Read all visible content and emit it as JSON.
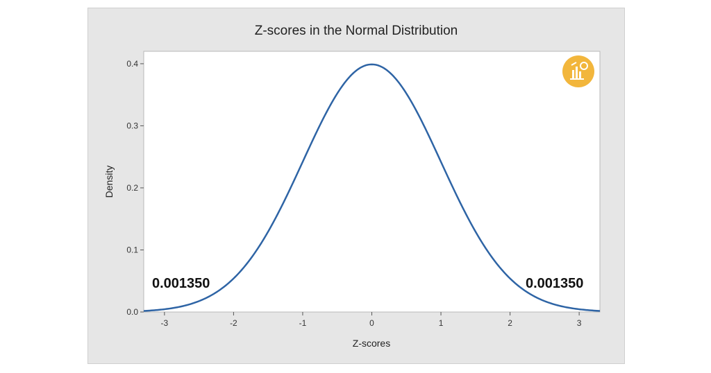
{
  "chart_data": {
    "type": "line",
    "title": "Z-scores in the Normal Distribution",
    "xlabel": "Z-scores",
    "ylabel": "Density",
    "xlim": [
      -3.3,
      3.3
    ],
    "ylim": [
      0.0,
      0.42
    ],
    "xticks": [
      -3,
      -2,
      -1,
      0,
      1,
      2,
      3
    ],
    "yticks": [
      0.0,
      0.1,
      0.2,
      0.3,
      0.4
    ],
    "ytick_labels": [
      "0.0",
      "0.1",
      "0.2",
      "0.3",
      "0.4"
    ],
    "series": [
      {
        "distribution": "standard normal",
        "mean": 0,
        "sd": 1,
        "x": [
          -3.3,
          -3.0,
          -2.5,
          -2.0,
          -1.5,
          -1.0,
          -0.5,
          0.0,
          0.5,
          1.0,
          1.5,
          2.0,
          2.5,
          3.0,
          3.3
        ],
        "y": [
          0.0017,
          0.0044,
          0.0175,
          0.054,
          0.1295,
          0.242,
          0.3521,
          0.3989,
          0.3521,
          0.242,
          0.1295,
          0.054,
          0.0175,
          0.0044,
          0.0017
        ]
      }
    ],
    "annotations": [
      {
        "text": "0.001350",
        "position": "left tail"
      },
      {
        "text": "0.001350",
        "position": "right tail"
      }
    ],
    "grid": false,
    "line_color": "#2e64a5",
    "logo_color": "#f2b63c"
  }
}
